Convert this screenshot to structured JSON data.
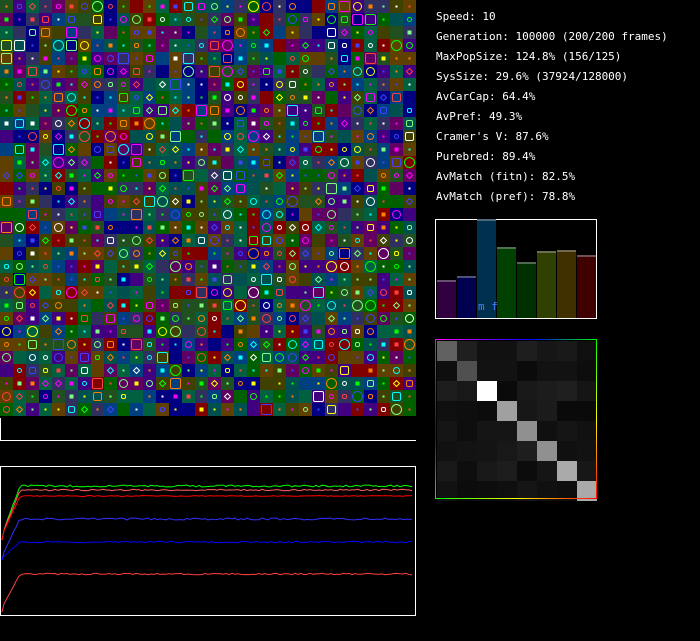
{
  "stats": [
    "Speed: 10",
    "Generation: 100000 (200/200 frames)",
    "MaxPopSize: 124.8% (156/125)",
    "SysSize: 29.6% (37924/128000)",
    "AvCarCap: 64.4%",
    "AvPref: 49.3%",
    "Cramer's V: 87.6%",
    "Purebred: 89.4%",
    "AvMatch (fitn): 82.5%",
    "AvMatch (pref): 78.8%"
  ],
  "histogram": {
    "label": "m f"
  }
}
